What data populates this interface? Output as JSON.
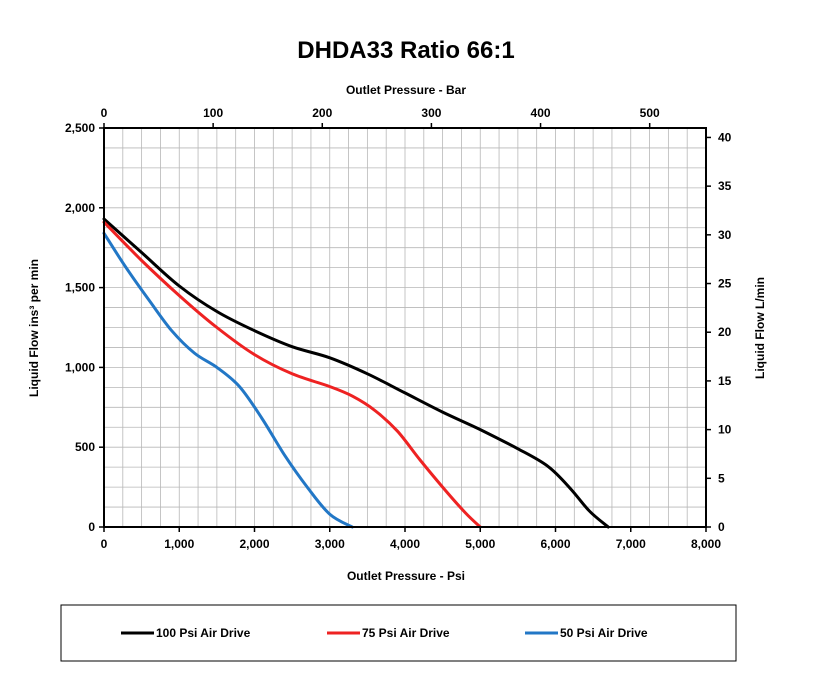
{
  "chart_data": {
    "type": "line",
    "title": "DHDA33  Ratio 66:1",
    "xlabel": "Outlet Pressure - Psi",
    "x2label": "Outlet Pressure - Bar",
    "ylabel": "Liquid Flow ins³ per min",
    "y2label": "Liquid Flow L/min",
    "xlim": [
      0,
      8000
    ],
    "ylim": [
      0,
      2500
    ],
    "x2lim": [
      0,
      551.6
    ],
    "y2lim": [
      0,
      40.97
    ],
    "grid": true,
    "x_ticks": [
      0,
      1000,
      2000,
      3000,
      4000,
      5000,
      6000,
      7000,
      8000
    ],
    "x_tick_labels": [
      "0",
      "1,000",
      "2,000",
      "3,000",
      "4,000",
      "5,000",
      "6,000",
      "7,000",
      "8,000"
    ],
    "y_ticks": [
      0,
      500,
      1000,
      1500,
      2000,
      2500
    ],
    "y_tick_labels": [
      "0",
      "500",
      "1,000",
      "1,500",
      "2,000",
      "2,500"
    ],
    "x2_ticks": [
      0,
      100,
      200,
      300,
      400,
      500
    ],
    "x2_tick_labels": [
      "0",
      "100",
      "200",
      "300",
      "400",
      "500"
    ],
    "y2_ticks": [
      0,
      5,
      10,
      15,
      20,
      25,
      30,
      35,
      40
    ],
    "y2_tick_labels": [
      "0",
      "5",
      "10",
      "15",
      "20",
      "25",
      "30",
      "35",
      "40"
    ],
    "legend_position": "bottom",
    "series": [
      {
        "name": "100 Psi Air Drive",
        "color": "#000000",
        "x": [
          0,
          500,
          1000,
          1500,
          2000,
          2500,
          3000,
          3500,
          4000,
          4500,
          5000,
          5500,
          5900,
          6200,
          6450,
          6700
        ],
        "y": [
          1930,
          1720,
          1510,
          1350,
          1230,
          1130,
          1060,
          960,
          840,
          720,
          610,
          490,
          380,
          240,
          100,
          0
        ]
      },
      {
        "name": "75 Psi Air Drive",
        "color": "#ee2222",
        "x": [
          0,
          500,
          1000,
          1500,
          2000,
          2500,
          3000,
          3300,
          3600,
          3900,
          4200,
          4500,
          4800,
          5000
        ],
        "y": [
          1910,
          1670,
          1450,
          1250,
          1080,
          960,
          880,
          820,
          730,
          600,
          420,
          250,
          90,
          0
        ]
      },
      {
        "name": "50 Psi Air Drive",
        "color": "#2277c6",
        "x": [
          0,
          300,
          600,
          900,
          1200,
          1500,
          1800,
          2100,
          2400,
          2700,
          3000,
          3300
        ],
        "y": [
          1840,
          1620,
          1420,
          1230,
          1090,
          1000,
          880,
          680,
          450,
          250,
          80,
          0
        ]
      }
    ]
  }
}
